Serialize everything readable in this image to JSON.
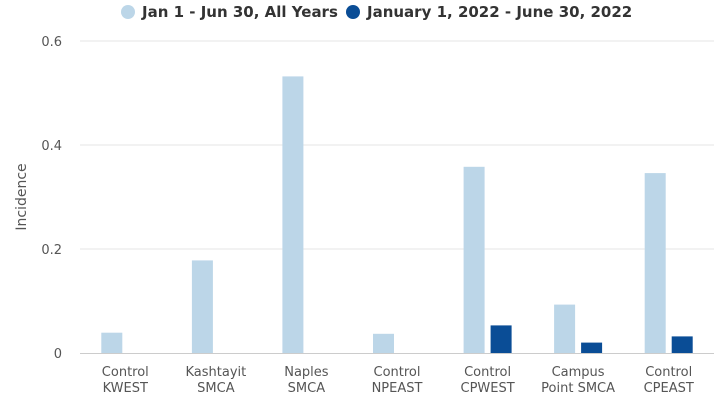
{
  "chart_data": {
    "type": "bar",
    "categories": [
      [
        "Control",
        "KWEST"
      ],
      [
        "Kashtayit",
        "SMCA"
      ],
      [
        "Naples",
        "SMCA"
      ],
      [
        "Control",
        "NPEAST"
      ],
      [
        "Control",
        "CPWEST"
      ],
      [
        "Campus",
        "Point SMCA"
      ],
      [
        "Control",
        "CPEAST"
      ]
    ],
    "series": [
      {
        "name": "Jan 1 - Jun 30, All Years",
        "color": "#bcd6e8",
        "values": [
          0.039,
          0.178,
          0.532,
          0.037,
          0.358,
          0.093,
          0.346
        ]
      },
      {
        "name": "January 1, 2022 - June 30, 2022",
        "color": "#0a4d96",
        "values": [
          0,
          0,
          0,
          0,
          0.053,
          0.02,
          0.032
        ]
      }
    ],
    "xlabel": "",
    "ylabel": "Incidence",
    "ylim": [
      0,
      0.6
    ],
    "yticks": [
      {
        "value": 0,
        "label": "0"
      },
      {
        "value": 0.2,
        "label": "0.2"
      },
      {
        "value": 0.4,
        "label": "0.4"
      },
      {
        "value": 0.6,
        "label": "0.6"
      }
    ],
    "grid": true,
    "legend_position": "top-center"
  }
}
